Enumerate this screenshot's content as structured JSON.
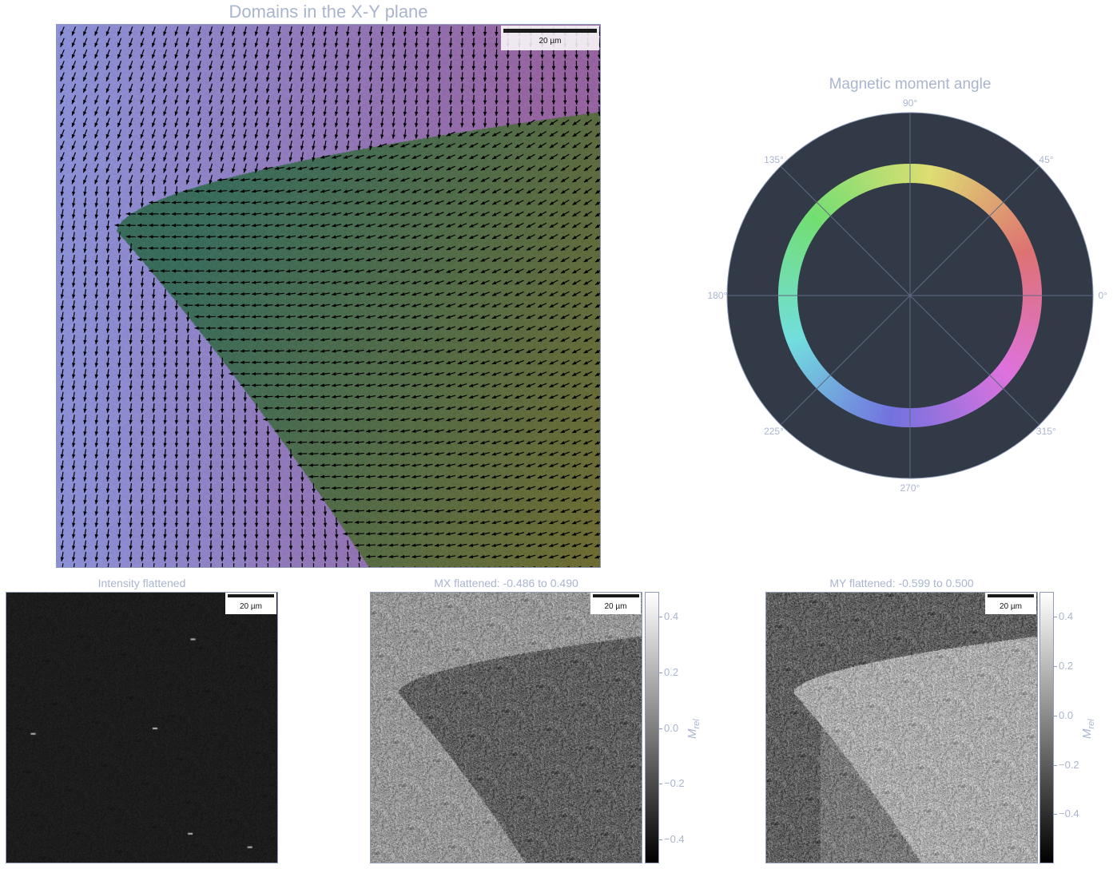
{
  "main": {
    "title": "Domains in the X-Y plane",
    "scalebar_label": "20 µm"
  },
  "polar": {
    "title": "Magnetic moment angle",
    "angle_labels": [
      "0°",
      "45°",
      "90°",
      "135°",
      "180°",
      "225°",
      "270°",
      "315°"
    ]
  },
  "intensity": {
    "title": "Intensity flattened",
    "scalebar_label": "20 µm"
  },
  "mx": {
    "title": "MX flattened: -0.486 to 0.490",
    "scalebar_label": "20 µm",
    "colorbar_ticks": [
      "0.4",
      "0.2",
      "0.0",
      "−0.2",
      "−0.4"
    ],
    "colorbar_label_main": "M",
    "colorbar_label_sub": "rel"
  },
  "my": {
    "title": "MY flattened: -0.599 to 0.500",
    "scalebar_label": "20 µm",
    "colorbar_ticks": [
      "0.4",
      "0.2",
      "0.0",
      "−0.2",
      "−0.4"
    ],
    "colorbar_label_main": "M",
    "colorbar_label_sub": "rel"
  },
  "colors": {
    "axes_text": "#a9b5cf",
    "polar_bg": "#323a47",
    "domain_a": "#8a88c8",
    "domain_b": "#3a6a58"
  }
}
